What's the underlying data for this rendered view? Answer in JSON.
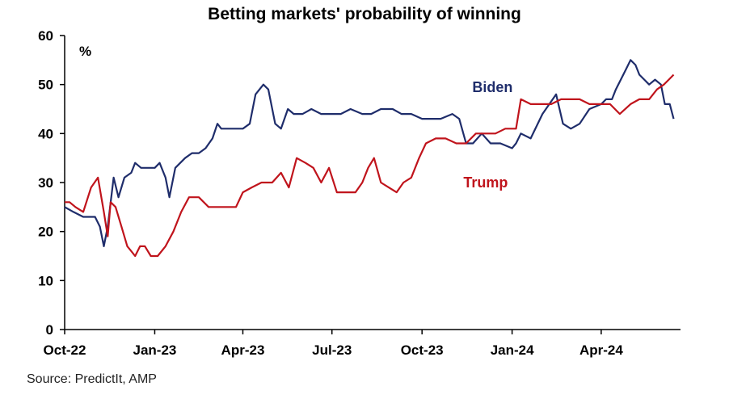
{
  "chart_data": {
    "type": "line",
    "title": "Betting markets' probability of winning",
    "ylabel": "%",
    "xlabel": "",
    "ylim": [
      0,
      60
    ],
    "yticks": [
      0,
      10,
      20,
      30,
      40,
      50,
      60
    ],
    "xlim": [
      "2022-10-01",
      "2024-06-21"
    ],
    "xticks": [
      {
        "date": "2022-10-01",
        "label": "Oct-22"
      },
      {
        "date": "2023-01-01",
        "label": "Jan-23"
      },
      {
        "date": "2023-04-01",
        "label": "Apr-23"
      },
      {
        "date": "2023-07-01",
        "label": "Jul-23"
      },
      {
        "date": "2023-10-01",
        "label": "Oct-23"
      },
      {
        "date": "2024-01-01",
        "label": "Jan-24"
      },
      {
        "date": "2024-04-01",
        "label": "Apr-24"
      }
    ],
    "grid": false,
    "series": [
      {
        "name": "Biden",
        "color": "#1f2d6b",
        "x": [
          "2022-10-01",
          "2022-10-10",
          "2022-10-20",
          "2022-11-01",
          "2022-11-06",
          "2022-11-10",
          "2022-11-14",
          "2022-11-20",
          "2022-11-25",
          "2022-12-01",
          "2022-12-08",
          "2022-12-12",
          "2022-12-18",
          "2022-12-25",
          "2023-01-01",
          "2023-01-06",
          "2023-01-12",
          "2023-01-16",
          "2023-01-22",
          "2023-02-01",
          "2023-02-08",
          "2023-02-15",
          "2023-02-22",
          "2023-03-01",
          "2023-03-06",
          "2023-03-10",
          "2023-03-17",
          "2023-03-24",
          "2023-04-01",
          "2023-04-08",
          "2023-04-14",
          "2023-04-22",
          "2023-04-27",
          "2023-05-04",
          "2023-05-10",
          "2023-05-17",
          "2023-05-23",
          "2023-06-01",
          "2023-06-10",
          "2023-06-20",
          "2023-07-01",
          "2023-07-10",
          "2023-07-20",
          "2023-08-01",
          "2023-08-10",
          "2023-08-20",
          "2023-09-01",
          "2023-09-10",
          "2023-09-20",
          "2023-10-01",
          "2023-10-10",
          "2023-10-20",
          "2023-11-01",
          "2023-11-08",
          "2023-11-15",
          "2023-11-22",
          "2023-12-01",
          "2023-12-10",
          "2023-12-20",
          "2024-01-01",
          "2024-01-05",
          "2024-01-10",
          "2024-01-20",
          "2024-02-01",
          "2024-02-08",
          "2024-02-15",
          "2024-02-22",
          "2024-03-01",
          "2024-03-10",
          "2024-03-20",
          "2024-04-01",
          "2024-04-06",
          "2024-04-12",
          "2024-04-16",
          "2024-04-21",
          "2024-04-26",
          "2024-05-01",
          "2024-05-06",
          "2024-05-10",
          "2024-05-15",
          "2024-05-20",
          "2024-05-26",
          "2024-06-01",
          "2024-06-05",
          "2024-06-10",
          "2024-06-14"
        ],
        "values": [
          25,
          24,
          23,
          23,
          21,
          17,
          21,
          31,
          27,
          31,
          32,
          34,
          33,
          33,
          33,
          34,
          31,
          27,
          33,
          35,
          36,
          36,
          37,
          39,
          42,
          41,
          41,
          41,
          41,
          42,
          48,
          50,
          49,
          42,
          41,
          45,
          44,
          44,
          45,
          44,
          44,
          44,
          45,
          44,
          44,
          45,
          45,
          44,
          44,
          43,
          43,
          43,
          44,
          43,
          38,
          38,
          40,
          38,
          38,
          37,
          38,
          40,
          39,
          44,
          46,
          48,
          42,
          41,
          42,
          45,
          46,
          47,
          47,
          49,
          51,
          53,
          55,
          54,
          52,
          51,
          50,
          51,
          50,
          46,
          46,
          43
        ]
      },
      {
        "name": "Trump",
        "color": "#c0141c",
        "x": [
          "2022-10-01",
          "2022-10-06",
          "2022-10-12",
          "2022-10-20",
          "2022-10-28",
          "2022-11-04",
          "2022-11-10",
          "2022-11-14",
          "2022-11-17",
          "2022-11-22",
          "2022-11-28",
          "2022-12-04",
          "2022-12-08",
          "2022-12-12",
          "2022-12-17",
          "2022-12-22",
          "2022-12-28",
          "2023-01-04",
          "2023-01-12",
          "2023-01-20",
          "2023-01-28",
          "2023-02-05",
          "2023-02-15",
          "2023-02-25",
          "2023-03-05",
          "2023-03-15",
          "2023-03-25",
          "2023-04-01",
          "2023-04-10",
          "2023-04-20",
          "2023-05-01",
          "2023-05-10",
          "2023-05-18",
          "2023-05-26",
          "2023-06-04",
          "2023-06-12",
          "2023-06-20",
          "2023-06-28",
          "2023-07-06",
          "2023-07-15",
          "2023-07-25",
          "2023-08-01",
          "2023-08-07",
          "2023-08-13",
          "2023-08-20",
          "2023-08-28",
          "2023-09-05",
          "2023-09-12",
          "2023-09-20",
          "2023-09-28",
          "2023-10-05",
          "2023-10-15",
          "2023-10-25",
          "2023-11-05",
          "2023-11-15",
          "2023-11-25",
          "2023-12-05",
          "2023-12-15",
          "2023-12-25",
          "2024-01-01",
          "2024-01-05",
          "2024-01-10",
          "2024-01-20",
          "2024-02-01",
          "2024-02-10",
          "2024-02-20",
          "2024-03-01",
          "2024-03-10",
          "2024-03-20",
          "2024-04-01",
          "2024-04-10",
          "2024-04-20",
          "2024-05-01",
          "2024-05-10",
          "2024-05-20",
          "2024-05-28",
          "2024-06-04",
          "2024-06-09",
          "2024-06-14"
        ],
        "values": [
          26,
          26,
          25,
          24,
          29,
          31,
          24,
          19,
          26,
          25,
          21,
          17,
          16,
          15,
          17,
          17,
          15,
          15,
          17,
          20,
          24,
          27,
          27,
          25,
          25,
          25,
          25,
          28,
          29,
          30,
          30,
          32,
          29,
          35,
          34,
          33,
          30,
          33,
          28,
          28,
          28,
          30,
          33,
          35,
          30,
          29,
          28,
          30,
          31,
          35,
          38,
          39,
          39,
          38,
          38,
          40,
          40,
          40,
          41,
          41,
          41,
          47,
          46,
          46,
          46,
          47,
          47,
          47,
          46,
          46,
          46,
          44,
          46,
          47,
          47,
          49,
          50,
          51,
          52
        ]
      }
    ],
    "annotations": [
      {
        "text": "Biden",
        "series": "Biden"
      },
      {
        "text": "Trump",
        "series": "Trump"
      }
    ]
  },
  "source_note": "Source: PredictIt, AMP"
}
